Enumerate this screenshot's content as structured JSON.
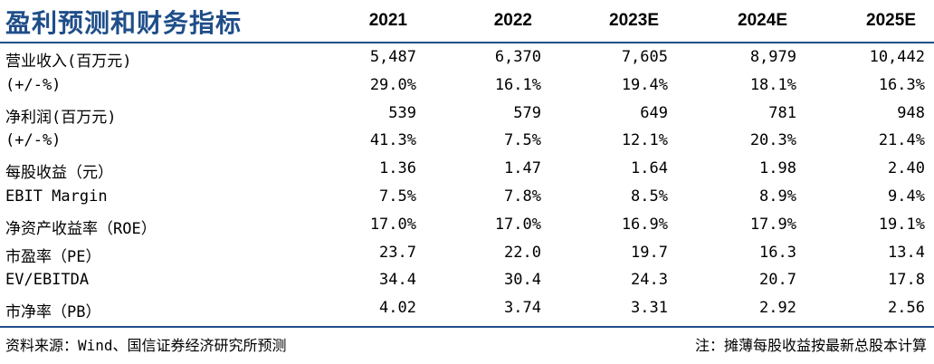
{
  "title": "盈利预测和财务指标",
  "columns": [
    "2021",
    "2022",
    "2023E",
    "2024E",
    "2025E"
  ],
  "rows": [
    {
      "label": "营业收入(百万元)",
      "values": [
        "5,487",
        "6,370",
        "7,605",
        "8,979",
        "10,442"
      ]
    },
    {
      "label": "(+/-%)",
      "values": [
        "29.0%",
        "16.1%",
        "19.4%",
        "18.1%",
        "16.3%"
      ]
    },
    {
      "label": "净利润(百万元)",
      "values": [
        "539",
        "579",
        "649",
        "781",
        "948"
      ]
    },
    {
      "label": "(+/-%)",
      "values": [
        "41.3%",
        "7.5%",
        "12.1%",
        "20.3%",
        "21.4%"
      ]
    },
    {
      "label": "每股收益（元）",
      "values": [
        "1.36",
        "1.47",
        "1.64",
        "1.98",
        "2.40"
      ]
    },
    {
      "label": "EBIT  Margin",
      "values": [
        "7.5%",
        "7.8%",
        "8.5%",
        "8.9%",
        "9.4%"
      ]
    },
    {
      "label": "净资产收益率（ROE）",
      "values": [
        "17.0%",
        "17.0%",
        "16.9%",
        "17.9%",
        "19.1%"
      ]
    },
    {
      "label": "市盈率（PE）",
      "values": [
        "23.7",
        "22.0",
        "19.7",
        "16.3",
        "13.4"
      ]
    },
    {
      "label": "EV/EBITDA",
      "values": [
        "34.4",
        "30.4",
        "24.3",
        "20.7",
        "17.8"
      ]
    },
    {
      "label": "市净率（PB）",
      "values": [
        "4.02",
        "3.74",
        "3.31",
        "2.92",
        "2.56"
      ]
    }
  ],
  "footer": {
    "source": "资料来源：Wind、国信证券经济研究所预测",
    "note": "注：摊薄每股收益按最新总股本计算"
  },
  "colors": {
    "title": "#1f4e89",
    "rule": "#1f4e89"
  }
}
